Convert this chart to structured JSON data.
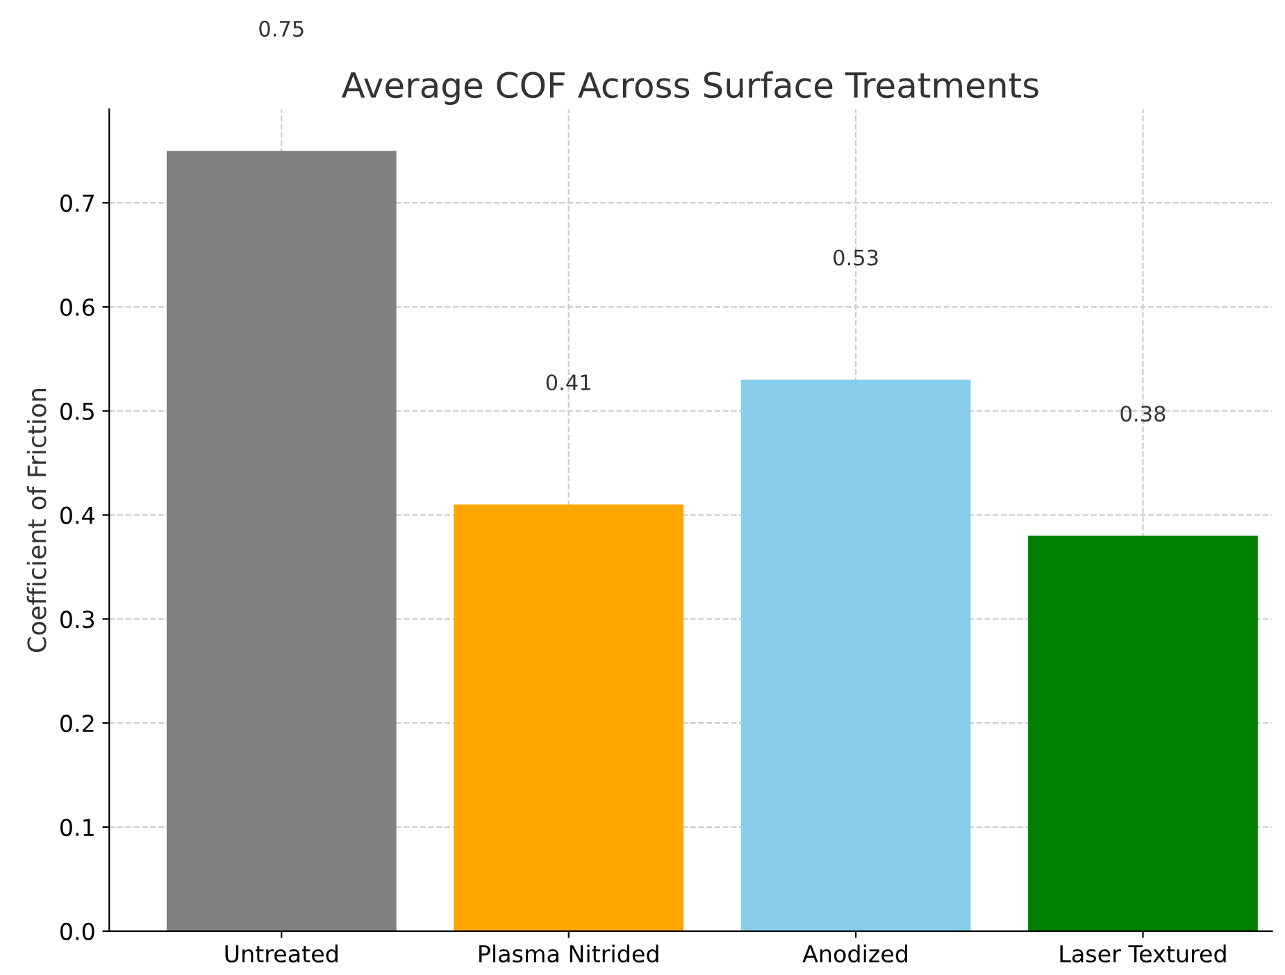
{
  "chart_data": {
    "type": "bar",
    "title": "Average COF Across Surface Treatments",
    "ylabel": "Coefficient of Friction",
    "categories": [
      "Untreated",
      "Plasma Nitrided",
      "Anodized",
      "Laser Textured"
    ],
    "values": [
      0.75,
      0.41,
      0.53,
      0.38
    ],
    "colors": [
      "#808080",
      "#ffa500",
      "#87ceeb",
      "#008000"
    ],
    "ylim": [
      0,
      0.79
    ],
    "yticks": [
      {
        "value": 0,
        "label": "0.0"
      },
      0.1,
      0.2,
      0.3,
      0.4,
      0.5,
      0.6,
      0.7
    ],
    "grid": true,
    "annotations": [
      "0.75",
      "0.41",
      "0.53",
      "0.38"
    ]
  }
}
